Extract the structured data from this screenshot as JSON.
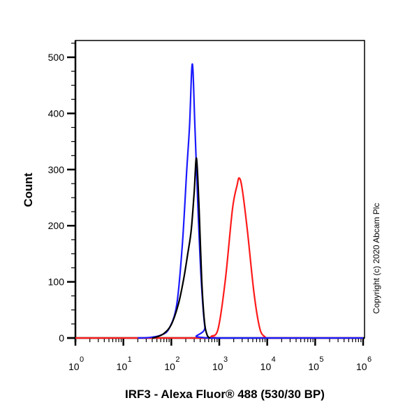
{
  "chart_data": {
    "type": "line",
    "title": "",
    "xlabel": "IRF3 - Alexa Fluor® 488 (530/30 BP)",
    "ylabel": "Count",
    "xscale": "log",
    "xlim": [
      1,
      1000000
    ],
    "ylim": [
      0,
      525
    ],
    "x_ticks": [
      {
        "base": "10",
        "exp": "0",
        "value": 1
      },
      {
        "base": "10",
        "exp": "1",
        "value": 10
      },
      {
        "base": "10",
        "exp": "2",
        "value": 100
      },
      {
        "base": "10",
        "exp": "3",
        "value": 1000
      },
      {
        "base": "10",
        "exp": "4",
        "value": 10000
      },
      {
        "base": "10",
        "exp": "5",
        "value": 100000
      },
      {
        "base": "10",
        "exp": "6",
        "value": 1000000
      }
    ],
    "y_ticks": [
      0,
      100,
      200,
      300,
      400,
      500
    ],
    "grid": false,
    "legend": null,
    "annotation": "Copyright (c) 2020 Abcam Plc",
    "series": [
      {
        "name": "blue",
        "color": "#1a1aff",
        "x": [
          20,
          36,
          60,
          90,
          130,
          170,
          210,
          240,
          274,
          310,
          360,
          420,
          500,
          600,
          1000000
        ],
        "y": [
          0,
          1,
          5,
          17,
          60,
          167,
          300,
          378,
          488,
          378,
          230,
          104,
          20,
          0,
          0
        ]
      },
      {
        "name": "black",
        "color": "#000000",
        "x": [
          40,
          50,
          70,
          100,
          140,
          180,
          220,
          260,
          300,
          335,
          380,
          430,
          490,
          560,
          650
        ],
        "y": [
          0,
          2,
          8,
          24,
          60,
          104,
          150,
          192,
          260,
          320,
          229,
          104,
          30,
          5,
          0
        ]
      },
      {
        "name": "red",
        "color": "#ff1a1a",
        "x": [
          1,
          500,
          680,
          950,
          1340,
          1880,
          2350,
          2608,
          3000,
          3850,
          5300,
          7000,
          9000,
          11000,
          1000000
        ],
        "y": [
          0,
          0,
          3,
          17,
          104,
          229,
          272,
          285,
          266,
          192,
          80,
          17,
          2,
          0,
          0
        ]
      }
    ]
  }
}
